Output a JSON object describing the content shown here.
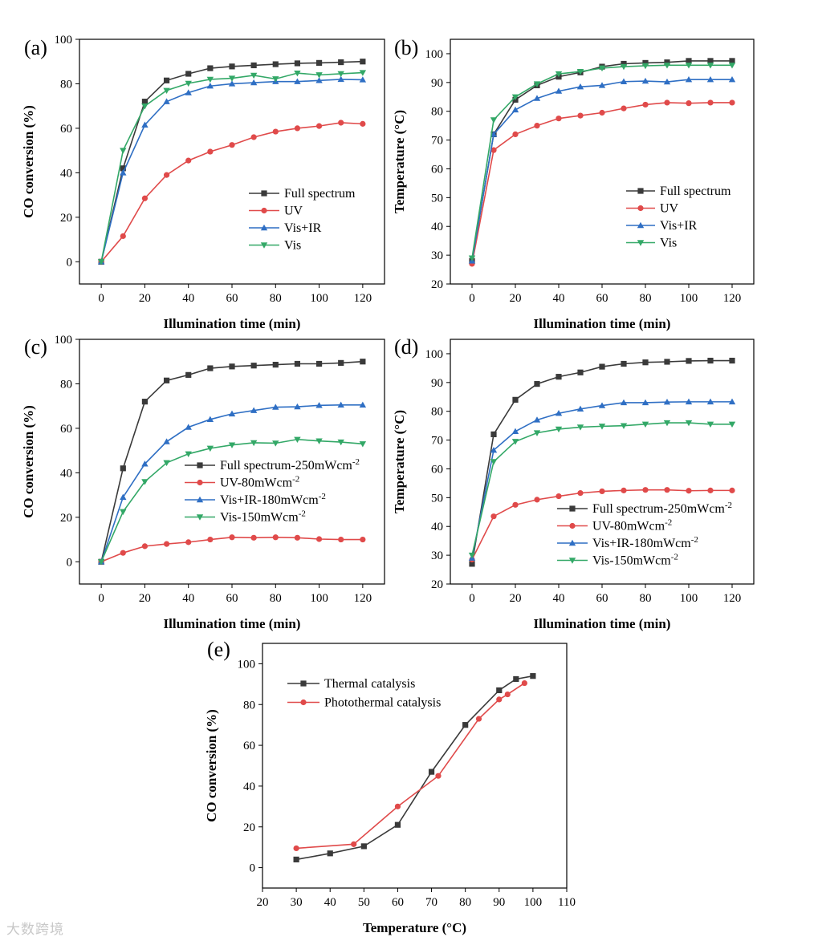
{
  "figure": {
    "watermark": "大数跨境"
  },
  "colors": {
    "black": "#3a3a3a",
    "red": "#e04a4a",
    "blue": "#2f6fc4",
    "green": "#33a867",
    "axis": "#000000"
  },
  "chart_data": [
    {
      "id": "a",
      "type": "line",
      "panel_label": "(a)",
      "xlabel": "Illumination time (min)",
      "ylabel": "CO conversion (%)",
      "xlim": [
        -10,
        130
      ],
      "ylim": [
        -10,
        100
      ],
      "xticks": [
        0,
        20,
        40,
        60,
        80,
        100,
        120
      ],
      "yticks": [
        0,
        20,
        40,
        60,
        80,
        100
      ],
      "x": [
        0,
        10,
        20,
        30,
        40,
        50,
        60,
        70,
        80,
        90,
        100,
        110,
        120
      ],
      "legend_position": "center-right",
      "series": [
        {
          "name": "Full spectrum",
          "color": "black",
          "marker": "square",
          "values": [
            0,
            42,
            72,
            81.5,
            84.5,
            87,
            87.8,
            88.3,
            88.8,
            89.2,
            89.4,
            89.7,
            90
          ]
        },
        {
          "name": "UV",
          "color": "red",
          "marker": "circle",
          "values": [
            0,
            11.5,
            28.5,
            39,
            45.5,
            49.5,
            52.5,
            56,
            58.5,
            60,
            61,
            62.5,
            62
          ]
        },
        {
          "name": "Vis+IR",
          "color": "blue",
          "marker": "triangle-up",
          "values": [
            0,
            40,
            61.5,
            72,
            76,
            79,
            80,
            80.5,
            81,
            81,
            81.5,
            82,
            81.8
          ]
        },
        {
          "name": "Vis",
          "color": "green",
          "marker": "triangle-down",
          "values": [
            0,
            50,
            70,
            77,
            80.2,
            82,
            82.5,
            83.8,
            82.2,
            84.8,
            84,
            84.5,
            85
          ]
        }
      ]
    },
    {
      "id": "b",
      "type": "line",
      "panel_label": "(b)",
      "xlabel": "Illumination time (min)",
      "ylabel": "Temperature (°C)",
      "xlim": [
        -10,
        130
      ],
      "ylim": [
        20,
        105
      ],
      "xticks": [
        0,
        20,
        40,
        60,
        80,
        100,
        120
      ],
      "yticks": [
        20,
        30,
        40,
        50,
        60,
        70,
        80,
        90,
        100
      ],
      "x": [
        0,
        10,
        20,
        30,
        40,
        50,
        60,
        70,
        80,
        90,
        100,
        110,
        120
      ],
      "legend_position": "center-right",
      "series": [
        {
          "name": "Full spectrum",
          "color": "black",
          "marker": "square",
          "values": [
            28,
            72,
            84,
            89,
            92,
            93.5,
            95.5,
            96.5,
            96.8,
            97,
            97.5,
            97.5,
            97.5
          ]
        },
        {
          "name": "UV",
          "color": "red",
          "marker": "circle",
          "values": [
            27,
            66.5,
            72,
            75,
            77.5,
            78.5,
            79.5,
            81,
            82.3,
            83,
            82.8,
            83,
            83
          ]
        },
        {
          "name": "Vis+IR",
          "color": "blue",
          "marker": "triangle-up",
          "values": [
            28,
            72,
            80.5,
            84.5,
            87,
            88.5,
            89,
            90.3,
            90.5,
            90.2,
            91,
            91,
            91
          ]
        },
        {
          "name": "Vis",
          "color": "green",
          "marker": "triangle-down",
          "values": [
            29,
            77,
            85,
            89.5,
            93,
            93.8,
            95,
            95.5,
            95.8,
            96,
            96,
            96,
            96
          ]
        }
      ]
    },
    {
      "id": "c",
      "type": "line",
      "panel_label": "(c)",
      "xlabel": "Illumination time (min)",
      "ylabel": "CO conversion (%)",
      "xlim": [
        -10,
        130
      ],
      "ylim": [
        -10,
        100
      ],
      "xticks": [
        0,
        20,
        40,
        60,
        80,
        100,
        120
      ],
      "yticks": [
        0,
        20,
        40,
        60,
        80,
        100
      ],
      "x": [
        0,
        10,
        20,
        30,
        40,
        50,
        60,
        70,
        80,
        90,
        100,
        110,
        120
      ],
      "legend_position": "center-right",
      "series": [
        {
          "name": "Full spectrum-250mWcm",
          "sup": "-2",
          "color": "black",
          "marker": "square",
          "values": [
            0,
            42,
            72,
            81.5,
            84,
            87,
            87.8,
            88.2,
            88.6,
            89,
            89,
            89.4,
            90
          ]
        },
        {
          "name": "UV-80mWcm",
          "sup": "-2",
          "color": "red",
          "marker": "circle",
          "values": [
            0,
            4,
            7,
            8,
            8.8,
            10,
            11,
            10.8,
            11,
            10.8,
            10.2,
            10,
            10
          ]
        },
        {
          "name": "Vis+IR-180mWcm",
          "sup": "-2",
          "color": "blue",
          "marker": "triangle-up",
          "values": [
            0,
            29,
            44,
            54,
            60.5,
            64,
            66.5,
            68,
            69.5,
            69.7,
            70.3,
            70.5,
            70.5
          ]
        },
        {
          "name": "Vis-150mWcm",
          "sup": "-2",
          "color": "green",
          "marker": "triangle-down",
          "values": [
            0,
            22.5,
            36,
            44.5,
            48.5,
            51,
            52.5,
            53.5,
            53.3,
            55,
            54.3,
            53.8,
            53
          ]
        }
      ]
    },
    {
      "id": "d",
      "type": "line",
      "panel_label": "(d)",
      "xlabel": "Illumination time (min)",
      "ylabel": "Temperature (°C)",
      "xlim": [
        -10,
        130
      ],
      "ylim": [
        20,
        105
      ],
      "xticks": [
        0,
        20,
        40,
        60,
        80,
        100,
        120
      ],
      "yticks": [
        20,
        30,
        40,
        50,
        60,
        70,
        80,
        90,
        100
      ],
      "x": [
        0,
        10,
        20,
        30,
        40,
        50,
        60,
        70,
        80,
        90,
        100,
        110,
        120
      ],
      "legend_position": "bottom-right",
      "series": [
        {
          "name": "Full spectrum-250mWcm",
          "sup": "-2",
          "color": "black",
          "marker": "square",
          "values": [
            27,
            72,
            84,
            89.5,
            92,
            93.5,
            95.5,
            96.5,
            97,
            97.2,
            97.5,
            97.6,
            97.6
          ]
        },
        {
          "name": "UV-80mWcm",
          "sup": "-2",
          "color": "red",
          "marker": "circle",
          "values": [
            28.5,
            43.5,
            47.5,
            49.3,
            50.5,
            51.6,
            52.2,
            52.5,
            52.7,
            52.7,
            52.4,
            52.5,
            52.5
          ]
        },
        {
          "name": "Vis+IR-180mWcm",
          "sup": "-2",
          "color": "blue",
          "marker": "triangle-up",
          "values": [
            29,
            66.5,
            73,
            77,
            79.3,
            80.8,
            82,
            83,
            83,
            83.2,
            83.3,
            83.3,
            83.3
          ]
        },
        {
          "name": "Vis-150mWcm",
          "sup": "-2",
          "color": "green",
          "marker": "triangle-down",
          "values": [
            30,
            62.5,
            69.5,
            72.5,
            73.8,
            74.5,
            74.8,
            75,
            75.5,
            76,
            76,
            75.5,
            75.5
          ]
        }
      ]
    },
    {
      "id": "e",
      "type": "line",
      "panel_label": "(e)",
      "xlabel": "Temperature (°C)",
      "ylabel": "CO conversion (%)",
      "xlim": [
        20,
        110
      ],
      "ylim": [
        -10,
        110
      ],
      "xticks": [
        20,
        30,
        40,
        50,
        60,
        70,
        80,
        90,
        100,
        110
      ],
      "yticks": [
        0,
        20,
        40,
        60,
        80,
        100
      ],
      "legend_position": "top-left",
      "series": [
        {
          "name": "Thermal catalysis",
          "color": "black",
          "marker": "square",
          "x": [
            30,
            40,
            50,
            60,
            70,
            80,
            90,
            95,
            100
          ],
          "values": [
            4,
            7,
            10.5,
            21,
            47,
            70,
            87,
            92.5,
            94
          ]
        },
        {
          "name": "Photothermal catalysis",
          "color": "red",
          "marker": "circle",
          "x": [
            30,
            47,
            60,
            72,
            84,
            90,
            92.5,
            97.5
          ],
          "values": [
            9.5,
            11.5,
            30,
            45,
            73,
            82.5,
            85,
            90.5
          ]
        }
      ]
    }
  ]
}
